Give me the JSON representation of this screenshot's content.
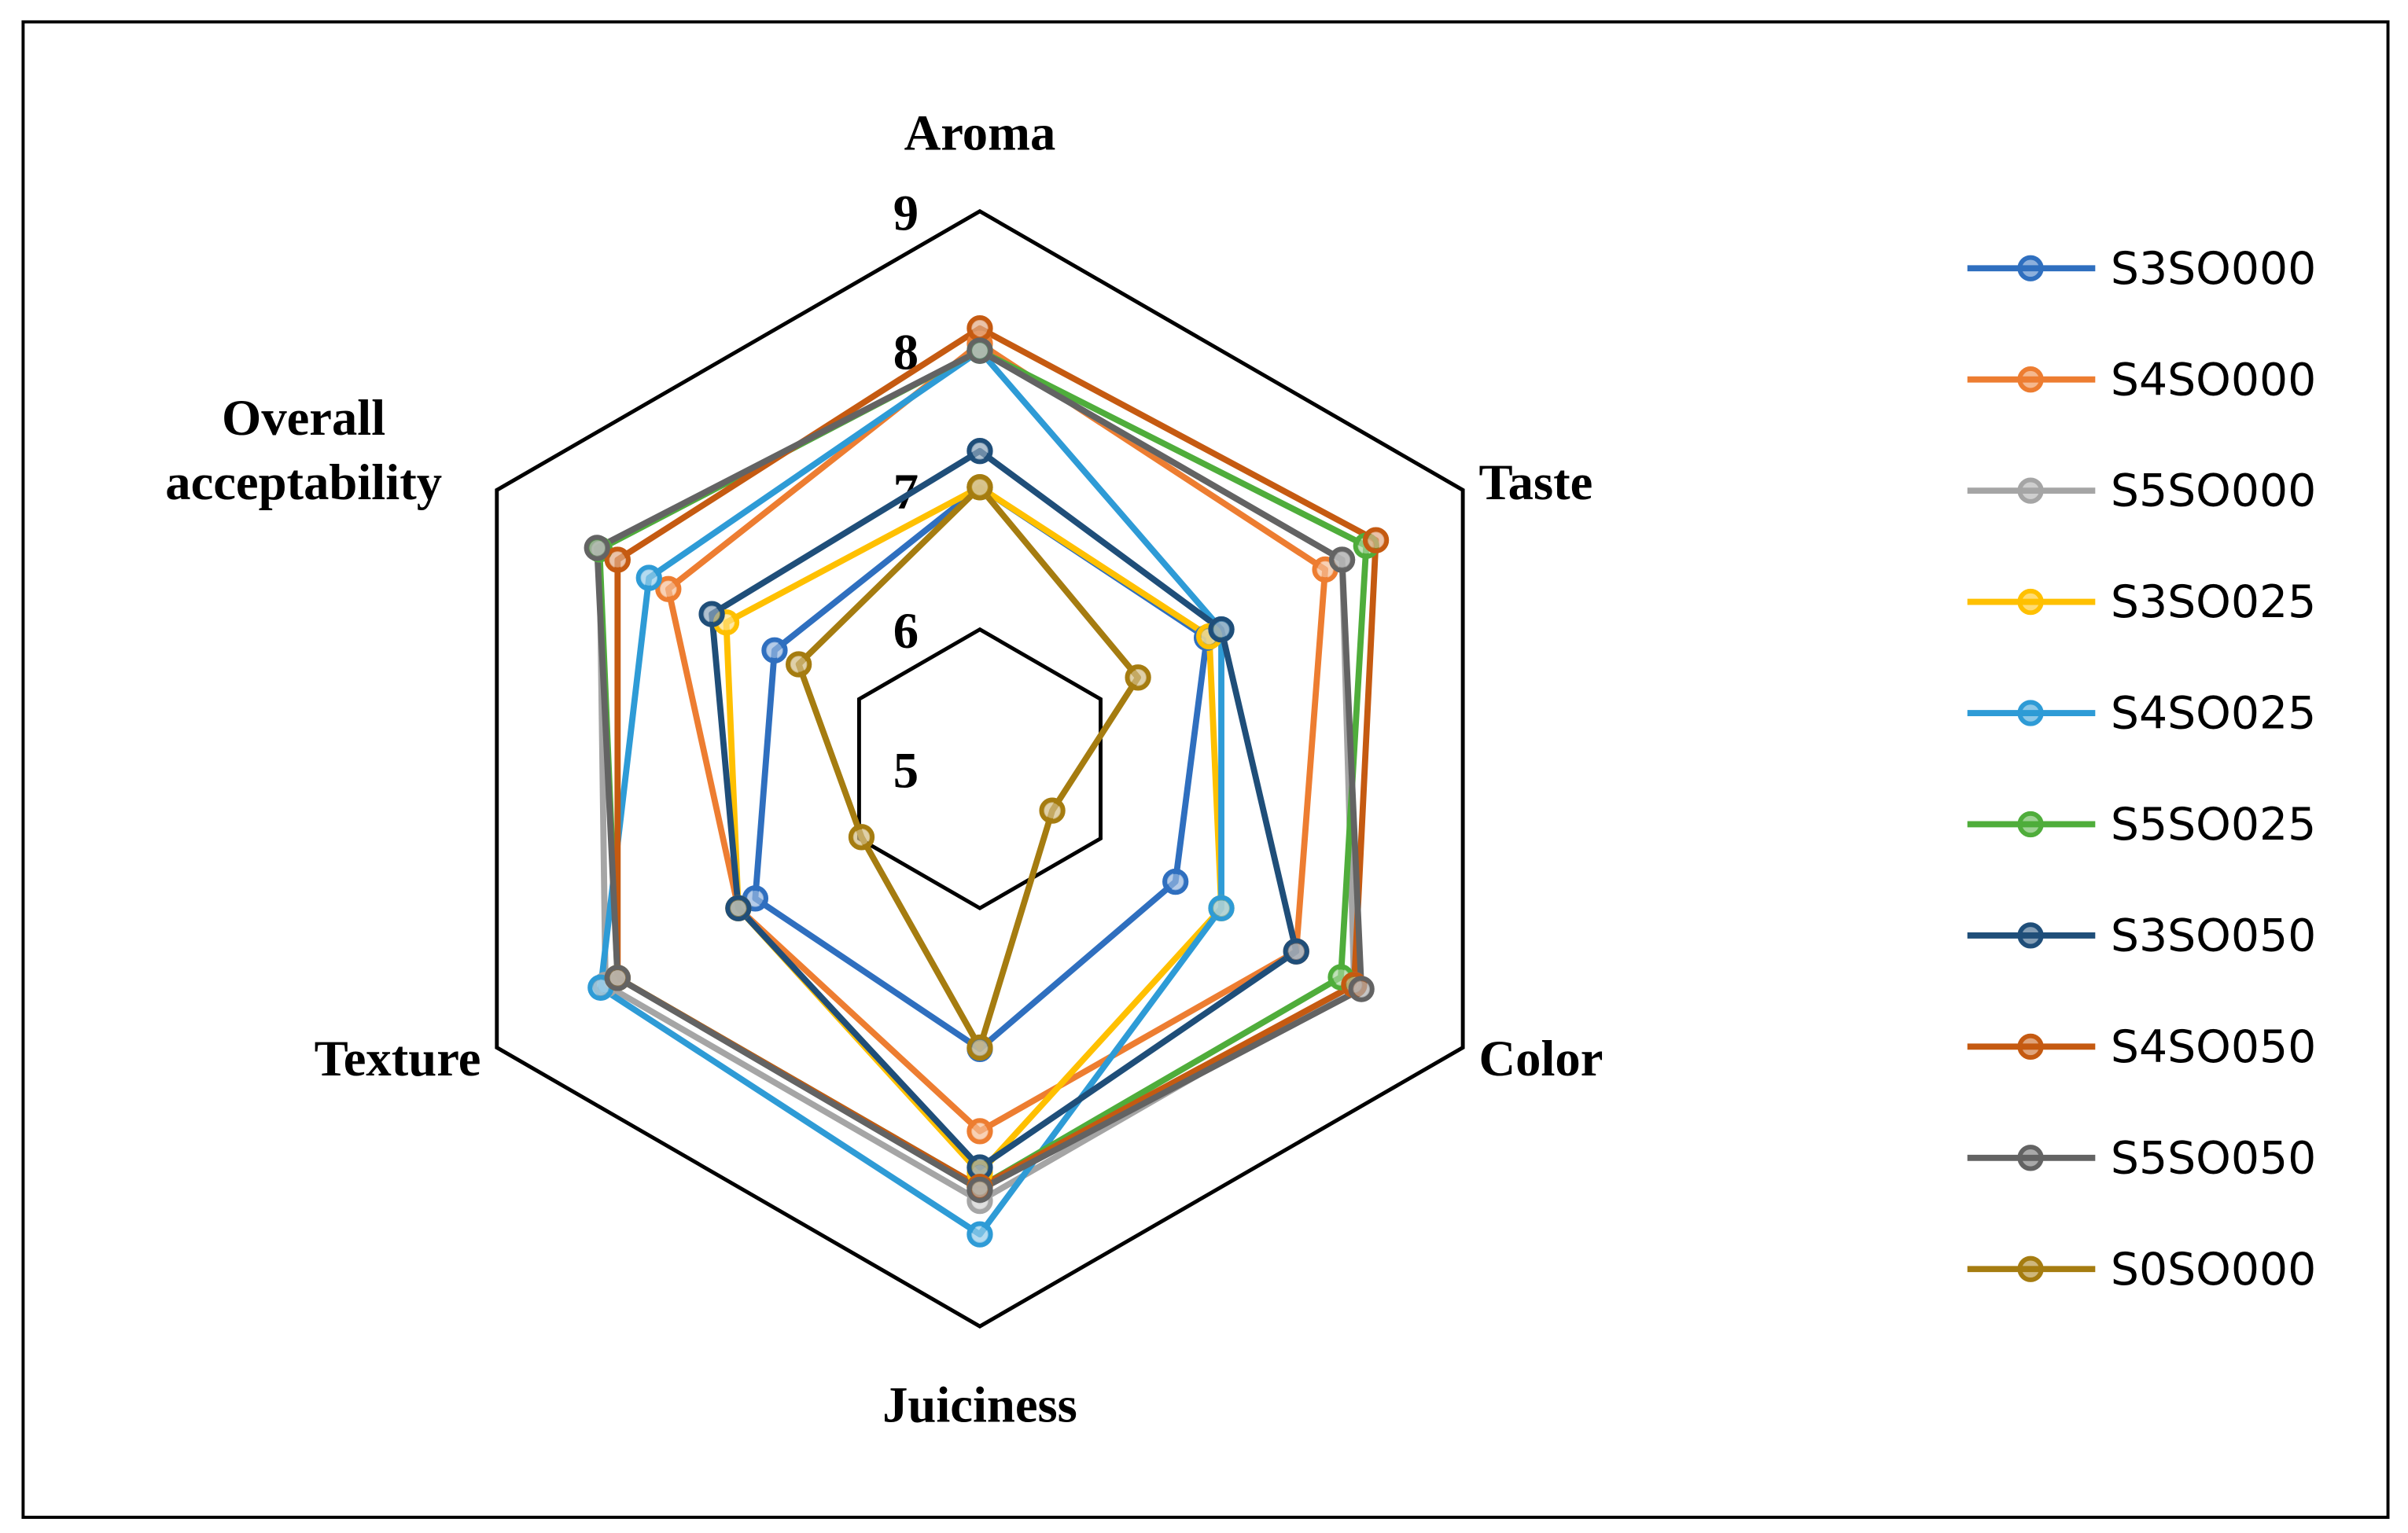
{
  "chart_data": {
    "type": "radar",
    "categories": [
      "Aroma",
      "Taste",
      "Color",
      "Juiciness",
      "Texture",
      "Overall acceptability"
    ],
    "rlim": [
      5,
      9
    ],
    "rticks": [
      5,
      6,
      7,
      8,
      9
    ],
    "grid_values": [
      6,
      9
    ],
    "legend": "right",
    "series": [
      {
        "name": "S3SO000",
        "color": "#2f6fbf",
        "values": [
          7.02,
          6.88,
          6.62,
          7.01,
          6.86,
          6.7
        ]
      },
      {
        "name": "S4SO000",
        "color": "#ed7d31",
        "values": [
          8.05,
          7.86,
          7.62,
          7.6,
          7.0,
          7.58
        ]
      },
      {
        "name": "S5SO000",
        "color": "#a5a5a5",
        "values": [
          8.0,
          8.0,
          8.1,
          8.1,
          8.1,
          8.15
        ]
      },
      {
        "name": "S3SO025",
        "color": "#ffc000",
        "values": [
          7.02,
          6.9,
          7.0,
          7.9,
          7.0,
          7.1
        ]
      },
      {
        "name": "S4SO025",
        "color": "#2e9bd6",
        "values": [
          8.0,
          7.0,
          7.0,
          8.34,
          8.14,
          7.74
        ]
      },
      {
        "name": "S5SO025",
        "color": "#4fad3b",
        "values": [
          8.0,
          8.2,
          7.99,
          8.0,
          8.0,
          8.15
        ]
      },
      {
        "name": "S3SO050",
        "color": "#1f4e79",
        "values": [
          7.28,
          7.0,
          7.62,
          7.86,
          7.0,
          7.22
        ]
      },
      {
        "name": "S4SO050",
        "color": "#c55a11",
        "values": [
          8.16,
          8.28,
          8.1,
          8.0,
          8.0,
          8.0
        ]
      },
      {
        "name": "S5SO050",
        "color": "#636363",
        "values": [
          8.0,
          8.0,
          8.16,
          8.02,
          8.0,
          8.17
        ]
      },
      {
        "name": "S0SO000",
        "color": "#a57c10",
        "values": [
          7.02,
          6.31,
          5.6,
          7.0,
          5.98,
          6.5
        ]
      }
    ]
  }
}
